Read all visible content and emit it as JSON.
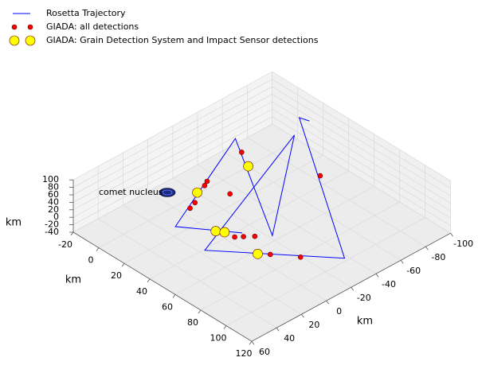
{
  "chart_data": {
    "type": "scatter3d",
    "annotation": "comet nucleus",
    "xlabel": "km",
    "ylabel": "km",
    "zlabel": "km",
    "xlim": [
      -20,
      120
    ],
    "xticks": [
      -20,
      0,
      20,
      40,
      60,
      80,
      100,
      120
    ],
    "ylim": [
      -100,
      60
    ],
    "yticks": [
      -100,
      -80,
      -60,
      -40,
      -20,
      0,
      20,
      40,
      60
    ],
    "zlim": [
      -40,
      100
    ],
    "zticks": [
      -40,
      -20,
      0,
      20,
      40,
      60,
      80,
      100
    ],
    "grid": true,
    "legend": "upper left",
    "series": [
      {
        "name": "Rosetta Trajectory",
        "mark": "line",
        "color": "#0000ff",
        "x": [
          17,
          11,
          108,
          51,
          16,
          66,
          -6,
          24,
          53
        ],
        "y": [
          -92,
          -90,
          -27,
          27,
          -81,
          -12,
          -56,
          23,
          -1
        ],
        "z": [
          60,
          60,
          0,
          0,
          40,
          0,
          30,
          0,
          0
        ]
      },
      {
        "name": "GIADA: all detections",
        "mark": "point",
        "color": "#ff0000",
        "marker_size": 3,
        "x": [
          -2,
          22,
          43,
          5,
          7,
          15,
          17,
          53,
          56,
          60,
          78,
          91
        ],
        "y": [
          -57,
          -23,
          -74,
          -22,
          -18,
          -2,
          4,
          5,
          1,
          -4,
          2,
          -9
        ],
        "z": [
          0,
          0,
          0,
          0,
          0,
          0,
          0,
          0,
          0,
          0,
          0,
          0
        ]
      },
      {
        "name": "GIADA: Grain Detection System and Impact Sensor detections",
        "mark": "point",
        "color": "#ffff00",
        "marker_size": 6,
        "x": [
          10,
          9,
          42,
          46,
          73
        ],
        "y": [
          -50,
          -10,
          9,
          6,
          7
        ],
        "z": [
          0,
          0,
          0,
          0,
          0
        ]
      }
    ]
  }
}
